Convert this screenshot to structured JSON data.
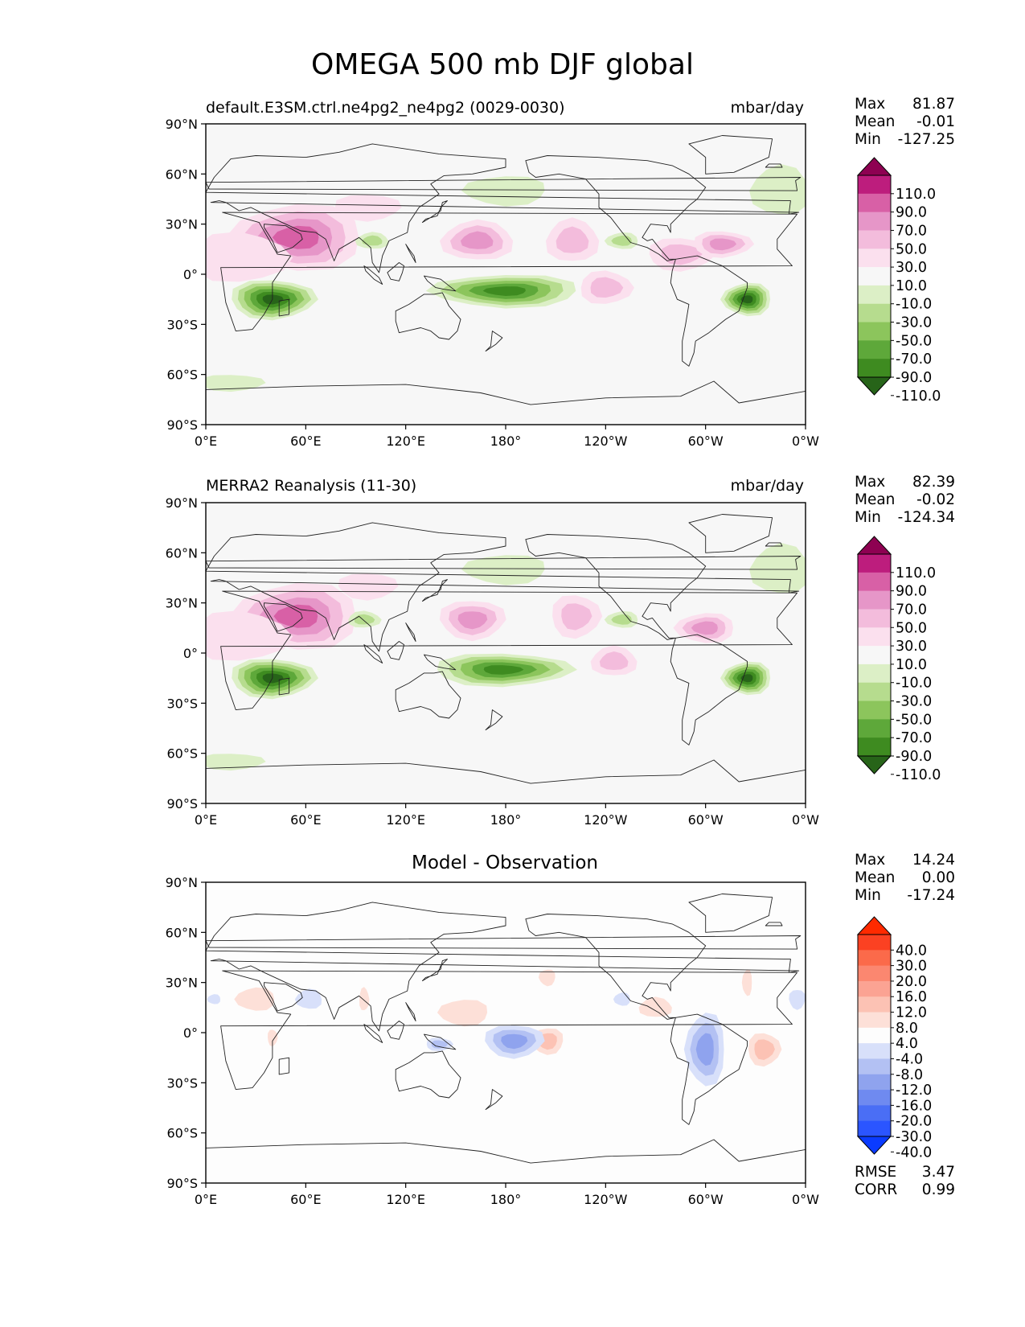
{
  "figure": {
    "title": "OMEGA 500 mb DJF global"
  },
  "axes": {
    "lat_labels": [
      "90°N",
      "60°N",
      "30°N",
      "0°",
      "30°S",
      "60°S",
      "90°S"
    ],
    "lon_labels": [
      "0°E",
      "60°E",
      "120°E",
      "180°",
      "120°W",
      "60°W",
      "0°W"
    ],
    "lat_values": [
      90,
      60,
      30,
      0,
      -30,
      -60,
      -90
    ],
    "lon_values": [
      0,
      60,
      120,
      180,
      240,
      300,
      360
    ]
  },
  "colors": {
    "ocean_bg": "#f7f7f7",
    "diff_bg": "#fdfdfd",
    "coast": "#222222",
    "piyg": [
      "#276419",
      "#3e8b20",
      "#5ea83a",
      "#8cc55c",
      "#b6dc8e",
      "#dcefc6",
      "#f7f7f7",
      "#fbe0ee",
      "#f3bcdc",
      "#e696c8",
      "#d860a6",
      "#bd1d7d",
      "#8e0152"
    ],
    "rdbu": [
      "#0a3bff",
      "#2b55ff",
      "#4a6ef5",
      "#6f8af0",
      "#8fa3ee",
      "#b3c1f3",
      "#d8e0fa",
      "#fdfdfd",
      "#fde0d8",
      "#fcc2b4",
      "#fba393",
      "#fb8770",
      "#fb6a4a",
      "#fb4122",
      "#ff2a00"
    ]
  },
  "panels": [
    {
      "id": "test",
      "left_title": "default.E3SM.ctrl.ne4pg2_ne4pg2 (0029-0030)",
      "right_title": "mbar/day",
      "center_title": "",
      "stats": {
        "max_label": "Max",
        "max": "81.87",
        "mean_label": "Mean",
        "mean": "-0.01",
        "min_label": "Min",
        "min": "-127.25"
      },
      "colorbar_ticks": [
        "110.0",
        "90.0",
        "70.0",
        "50.0",
        "30.0",
        "10.0",
        "-10.0",
        "-30.0",
        "-50.0",
        "-70.0",
        "-90.0",
        "-110.0"
      ],
      "palette": "piyg"
    },
    {
      "id": "ref",
      "left_title": "MERRA2 Reanalysis (11-30)",
      "right_title": "mbar/day",
      "center_title": "",
      "stats": {
        "max_label": "Max",
        "max": "82.39",
        "mean_label": "Mean",
        "mean": "-0.02",
        "min_label": "Min",
        "min": "-124.34"
      },
      "colorbar_ticks": [
        "110.0",
        "90.0",
        "70.0",
        "50.0",
        "30.0",
        "10.0",
        "-10.0",
        "-30.0",
        "-50.0",
        "-70.0",
        "-90.0",
        "-110.0"
      ],
      "palette": "piyg"
    },
    {
      "id": "diff",
      "left_title": "",
      "right_title": "",
      "center_title": "Model - Observation",
      "stats": {
        "max_label": "Max",
        "max": "14.24",
        "mean_label": "Mean",
        "mean": "0.00",
        "min_label": "Min",
        "min": "-17.24"
      },
      "colorbar_ticks": [
        "40.0",
        "30.0",
        "20.0",
        "16.0",
        "12.0",
        "8.0",
        "4.0",
        "-4.0",
        "-8.0",
        "-12.0",
        "-16.0",
        "-20.0",
        "-30.0",
        "-40.0"
      ],
      "palette": "rdbu",
      "metrics": {
        "rmse_label": "RMSE",
        "rmse": "3.47",
        "corr_label": "CORR",
        "corr": "0.99"
      }
    }
  ],
  "field_features": {
    "test": [
      {
        "lon": 55,
        "lat": 22,
        "level": 4,
        "rx": 40,
        "ry": 20
      },
      {
        "lon": 20,
        "lat": 10,
        "level": 1,
        "rx": 30,
        "ry": 15
      },
      {
        "lon": 163,
        "lat": 20,
        "level": 3,
        "rx": 22,
        "ry": 12
      },
      {
        "lon": 220,
        "lat": 20,
        "level": 2,
        "rx": 16,
        "ry": 13
      },
      {
        "lon": 285,
        "lat": 12,
        "level": 2,
        "rx": 20,
        "ry": 10
      },
      {
        "lon": 310,
        "lat": 18,
        "level": 3,
        "rx": 18,
        "ry": 8
      },
      {
        "lon": 97,
        "lat": 40,
        "level": 1,
        "rx": 20,
        "ry": 8
      },
      {
        "lon": 240,
        "lat": -8,
        "level": 2,
        "rx": 16,
        "ry": 10
      },
      {
        "lon": 40,
        "lat": -15,
        "level": -6,
        "rx": 26,
        "ry": 12
      },
      {
        "lon": 180,
        "lat": -10,
        "level": -5,
        "rx": 45,
        "ry": 10
      },
      {
        "lon": 325,
        "lat": -15,
        "level": -6,
        "rx": 15,
        "ry": 10
      },
      {
        "lon": 180,
        "lat": 50,
        "level": -1,
        "rx": 25,
        "ry": 9
      },
      {
        "lon": 100,
        "lat": 20,
        "level": -2,
        "rx": 10,
        "ry": 5
      },
      {
        "lon": 250,
        "lat": 20,
        "level": -2,
        "rx": 10,
        "ry": 5
      },
      {
        "lon": 345,
        "lat": 50,
        "level": -1,
        "rx": 18,
        "ry": 15
      },
      {
        "lon": 15,
        "lat": -65,
        "level": -1,
        "rx": 20,
        "ry": 5
      }
    ],
    "ref": [
      {
        "lon": 55,
        "lat": 22,
        "level": 4,
        "rx": 38,
        "ry": 20
      },
      {
        "lon": 20,
        "lat": 10,
        "level": 1,
        "rx": 30,
        "ry": 15
      },
      {
        "lon": 160,
        "lat": 20,
        "level": 3,
        "rx": 20,
        "ry": 12
      },
      {
        "lon": 222,
        "lat": 22,
        "level": 2,
        "rx": 15,
        "ry": 13
      },
      {
        "lon": 300,
        "lat": 15,
        "level": 3,
        "rx": 18,
        "ry": 9
      },
      {
        "lon": 97,
        "lat": 40,
        "level": 1,
        "rx": 18,
        "ry": 8
      },
      {
        "lon": 245,
        "lat": -5,
        "level": 2,
        "rx": 14,
        "ry": 9
      },
      {
        "lon": 40,
        "lat": -15,
        "level": -6,
        "rx": 26,
        "ry": 12
      },
      {
        "lon": 178,
        "lat": -10,
        "level": -5,
        "rx": 42,
        "ry": 10
      },
      {
        "lon": 325,
        "lat": -15,
        "level": -6,
        "rx": 15,
        "ry": 10
      },
      {
        "lon": 180,
        "lat": 50,
        "level": -1,
        "rx": 25,
        "ry": 9
      },
      {
        "lon": 95,
        "lat": 20,
        "level": -2,
        "rx": 10,
        "ry": 5
      },
      {
        "lon": 250,
        "lat": 20,
        "level": -2,
        "rx": 10,
        "ry": 5
      },
      {
        "lon": 345,
        "lat": 50,
        "level": -1,
        "rx": 18,
        "ry": 15
      },
      {
        "lon": 15,
        "lat": -65,
        "level": -1,
        "rx": 20,
        "ry": 5
      }
    ],
    "diff": [
      {
        "lon": 30,
        "lat": 20,
        "level": 1,
        "rx": 12,
        "ry": 7
      },
      {
        "lon": 95,
        "lat": 20,
        "level": 1,
        "rx": 3,
        "ry": 7
      },
      {
        "lon": 155,
        "lat": 12,
        "level": 1,
        "rx": 15,
        "ry": 8
      },
      {
        "lon": 205,
        "lat": 33,
        "level": 1,
        "rx": 5,
        "ry": 5
      },
      {
        "lon": 205,
        "lat": -5,
        "level": 2,
        "rx": 10,
        "ry": 8
      },
      {
        "lon": 270,
        "lat": 15,
        "level": 1,
        "rx": 10,
        "ry": 6
      },
      {
        "lon": 335,
        "lat": -10,
        "level": 2,
        "rx": 10,
        "ry": 10
      },
      {
        "lon": 325,
        "lat": 30,
        "level": 1,
        "rx": 3,
        "ry": 8
      },
      {
        "lon": 40,
        "lat": -3,
        "level": 1,
        "rx": 3,
        "ry": 5
      },
      {
        "lon": 185,
        "lat": -5,
        "level": -3,
        "rx": 18,
        "ry": 10
      },
      {
        "lon": 140,
        "lat": -7,
        "level": -2,
        "rx": 8,
        "ry": 4
      },
      {
        "lon": 300,
        "lat": -10,
        "level": -3,
        "rx": 12,
        "ry": 22
      },
      {
        "lon": 62,
        "lat": 20,
        "level": -1,
        "rx": 8,
        "ry": 6
      },
      {
        "lon": 5,
        "lat": 20,
        "level": -1,
        "rx": 4,
        "ry": 3
      },
      {
        "lon": 355,
        "lat": 20,
        "level": -1,
        "rx": 5,
        "ry": 6
      },
      {
        "lon": 250,
        "lat": 20,
        "level": -1,
        "rx": 5,
        "ry": 4
      }
    ]
  },
  "coastlines": [
    {
      "name": "africa",
      "pts": [
        [
          -17,
          21
        ],
        [
          -5,
          36
        ],
        [
          10,
          37
        ],
        [
          32,
          31
        ],
        [
          43,
          12
        ],
        [
          51,
          11
        ],
        [
          40,
          -5
        ],
        [
          40,
          -15
        ],
        [
          35,
          -24
        ],
        [
          28,
          -33
        ],
        [
          18,
          -34
        ],
        [
          12,
          -17
        ],
        [
          9,
          4
        ],
        [
          -8,
          5
        ],
        [
          -17,
          15
        ]
      ]
    },
    {
      "name": "arabia",
      "pts": [
        [
          35,
          30
        ],
        [
          48,
          29
        ],
        [
          57,
          24
        ],
        [
          58,
          21
        ],
        [
          52,
          16
        ],
        [
          43,
          13
        ],
        [
          40,
          20
        ],
        [
          35,
          28
        ]
      ]
    },
    {
      "name": "madagascar",
      "pts": [
        [
          44,
          -16
        ],
        [
          50,
          -15
        ],
        [
          50,
          -24
        ],
        [
          44,
          -25
        ]
      ]
    },
    {
      "name": "eurasia",
      "pts": [
        [
          -10,
          36
        ],
        [
          -9,
          44
        ],
        [
          0,
          49
        ],
        [
          5,
          58
        ],
        [
          15,
          69
        ],
        [
          30,
          71
        ],
        [
          60,
          70
        ],
        [
          80,
          73
        ],
        [
          100,
          78
        ],
        [
          140,
          72
        ],
        [
          180,
          69
        ],
        [
          180,
          64
        ],
        [
          160,
          60
        ],
        [
          143,
          59
        ],
        [
          135,
          54
        ],
        [
          140,
          48
        ],
        [
          128,
          40
        ],
        [
          122,
          31
        ],
        [
          121,
          25
        ],
        [
          110,
          20
        ],
        [
          106,
          11
        ],
        [
          104,
          1
        ],
        [
          100,
          7
        ],
        [
          99,
          16
        ],
        [
          92,
          22
        ],
        [
          80,
          15
        ],
        [
          77,
          8
        ],
        [
          72,
          21
        ],
        [
          66,
          25
        ],
        [
          57,
          26
        ],
        [
          48,
          30
        ],
        [
          35,
          36
        ],
        [
          27,
          40
        ],
        [
          20,
          38
        ],
        [
          12,
          43
        ],
        [
          8,
          44
        ],
        [
          3,
          43
        ],
        [
          -4,
          37
        ]
      ]
    },
    {
      "name": "australia",
      "pts": [
        [
          114,
          -22
        ],
        [
          122,
          -18
        ],
        [
          131,
          -12
        ],
        [
          137,
          -12
        ],
        [
          142,
          -11
        ],
        [
          146,
          -19
        ],
        [
          153,
          -27
        ],
        [
          151,
          -34
        ],
        [
          146,
          -39
        ],
        [
          140,
          -38
        ],
        [
          135,
          -34
        ],
        [
          129,
          -32
        ],
        [
          116,
          -35
        ],
        [
          114,
          -28
        ]
      ]
    },
    {
      "name": "new-zealand",
      "pts": [
        [
          172,
          -34
        ],
        [
          178,
          -38
        ],
        [
          174,
          -42
        ],
        [
          168,
          -46
        ],
        [
          171,
          -43
        ]
      ]
    },
    {
      "name": "north-america",
      "pts": [
        [
          192,
          68
        ],
        [
          205,
          71
        ],
        [
          235,
          70
        ],
        [
          265,
          68
        ],
        [
          280,
          65
        ],
        [
          290,
          60
        ],
        [
          300,
          52
        ],
        [
          295,
          45
        ],
        [
          290,
          41
        ],
        [
          284,
          35
        ],
        [
          279,
          30
        ],
        [
          279,
          25
        ],
        [
          277,
          29
        ],
        [
          267,
          30
        ],
        [
          262,
          22
        ],
        [
          265,
          20
        ],
        [
          268,
          21
        ],
        [
          272,
          16
        ],
        [
          278,
          9
        ],
        [
          282,
          9
        ],
        [
          277,
          8
        ],
        [
          272,
          12
        ],
        [
          265,
          16
        ],
        [
          255,
          19
        ],
        [
          250,
          25
        ],
        [
          243,
          34
        ],
        [
          236,
          40
        ],
        [
          236,
          48
        ],
        [
          228,
          57
        ],
        [
          212,
          60
        ],
        [
          198,
          58
        ],
        [
          194,
          61
        ]
      ]
    },
    {
      "name": "greenland",
      "pts": [
        [
          300,
          60
        ],
        [
          317,
          61
        ],
        [
          338,
          70
        ],
        [
          340,
          81
        ],
        [
          310,
          83
        ],
        [
          290,
          78
        ],
        [
          300,
          70
        ]
      ]
    },
    {
      "name": "south-america",
      "pts": [
        [
          282,
          9
        ],
        [
          295,
          11
        ],
        [
          310,
          5
        ],
        [
          325,
          -5
        ],
        [
          325,
          -8
        ],
        [
          320,
          -22
        ],
        [
          312,
          -27
        ],
        [
          302,
          -35
        ],
        [
          294,
          -40
        ],
        [
          293,
          -47
        ],
        [
          290,
          -55
        ],
        [
          286,
          -52
        ],
        [
          286,
          -40
        ],
        [
          288,
          -30
        ],
        [
          290,
          -18
        ],
        [
          283,
          -15
        ],
        [
          279,
          -5
        ],
        [
          280,
          2
        ]
      ]
    },
    {
      "name": "antarctica",
      "pts": [
        [
          0,
          -69
        ],
        [
          60,
          -67
        ],
        [
          120,
          -66
        ],
        [
          165,
          -71
        ],
        [
          195,
          -78
        ],
        [
          240,
          -74
        ],
        [
          285,
          -73
        ],
        [
          305,
          -64
        ],
        [
          320,
          -77
        ],
        [
          360,
          -70
        ],
        [
          360,
          -90
        ],
        [
          0,
          -90
        ]
      ]
    },
    {
      "name": "britain",
      "pts": [
        [
          -5,
          50
        ],
        [
          2,
          51
        ],
        [
          0,
          55
        ],
        [
          -3,
          58
        ],
        [
          -6,
          56
        ]
      ]
    },
    {
      "name": "japan",
      "pts": [
        [
          130,
          31
        ],
        [
          135,
          34
        ],
        [
          141,
          38
        ],
        [
          142,
          43
        ],
        [
          145,
          44
        ],
        [
          141,
          40
        ],
        [
          139,
          35
        ],
        [
          132,
          33
        ]
      ]
    },
    {
      "name": "borneo",
      "pts": [
        [
          109,
          1
        ],
        [
          116,
          7
        ],
        [
          119,
          5
        ],
        [
          118,
          1
        ],
        [
          116,
          -4
        ],
        [
          111,
          -3
        ]
      ]
    },
    {
      "name": "sumatra",
      "pts": [
        [
          95,
          5
        ],
        [
          98,
          3
        ],
        [
          104,
          -2
        ],
        [
          106,
          -6
        ],
        [
          101,
          -3
        ],
        [
          96,
          2
        ]
      ]
    },
    {
      "name": "new-guinea",
      "pts": [
        [
          131,
          -1
        ],
        [
          141,
          -3
        ],
        [
          150,
          -10
        ],
        [
          143,
          -9
        ],
        [
          138,
          -8
        ],
        [
          133,
          -4
        ]
      ]
    },
    {
      "name": "philippines",
      "pts": [
        [
          120,
          18
        ],
        [
          122,
          14
        ],
        [
          126,
          7
        ],
        [
          125,
          11
        ],
        [
          122,
          15
        ]
      ]
    },
    {
      "name": "iceland",
      "pts": [
        [
          -24,
          64
        ],
        [
          -14,
          64
        ],
        [
          -15,
          66
        ],
        [
          -22,
          66
        ]
      ]
    }
  ]
}
